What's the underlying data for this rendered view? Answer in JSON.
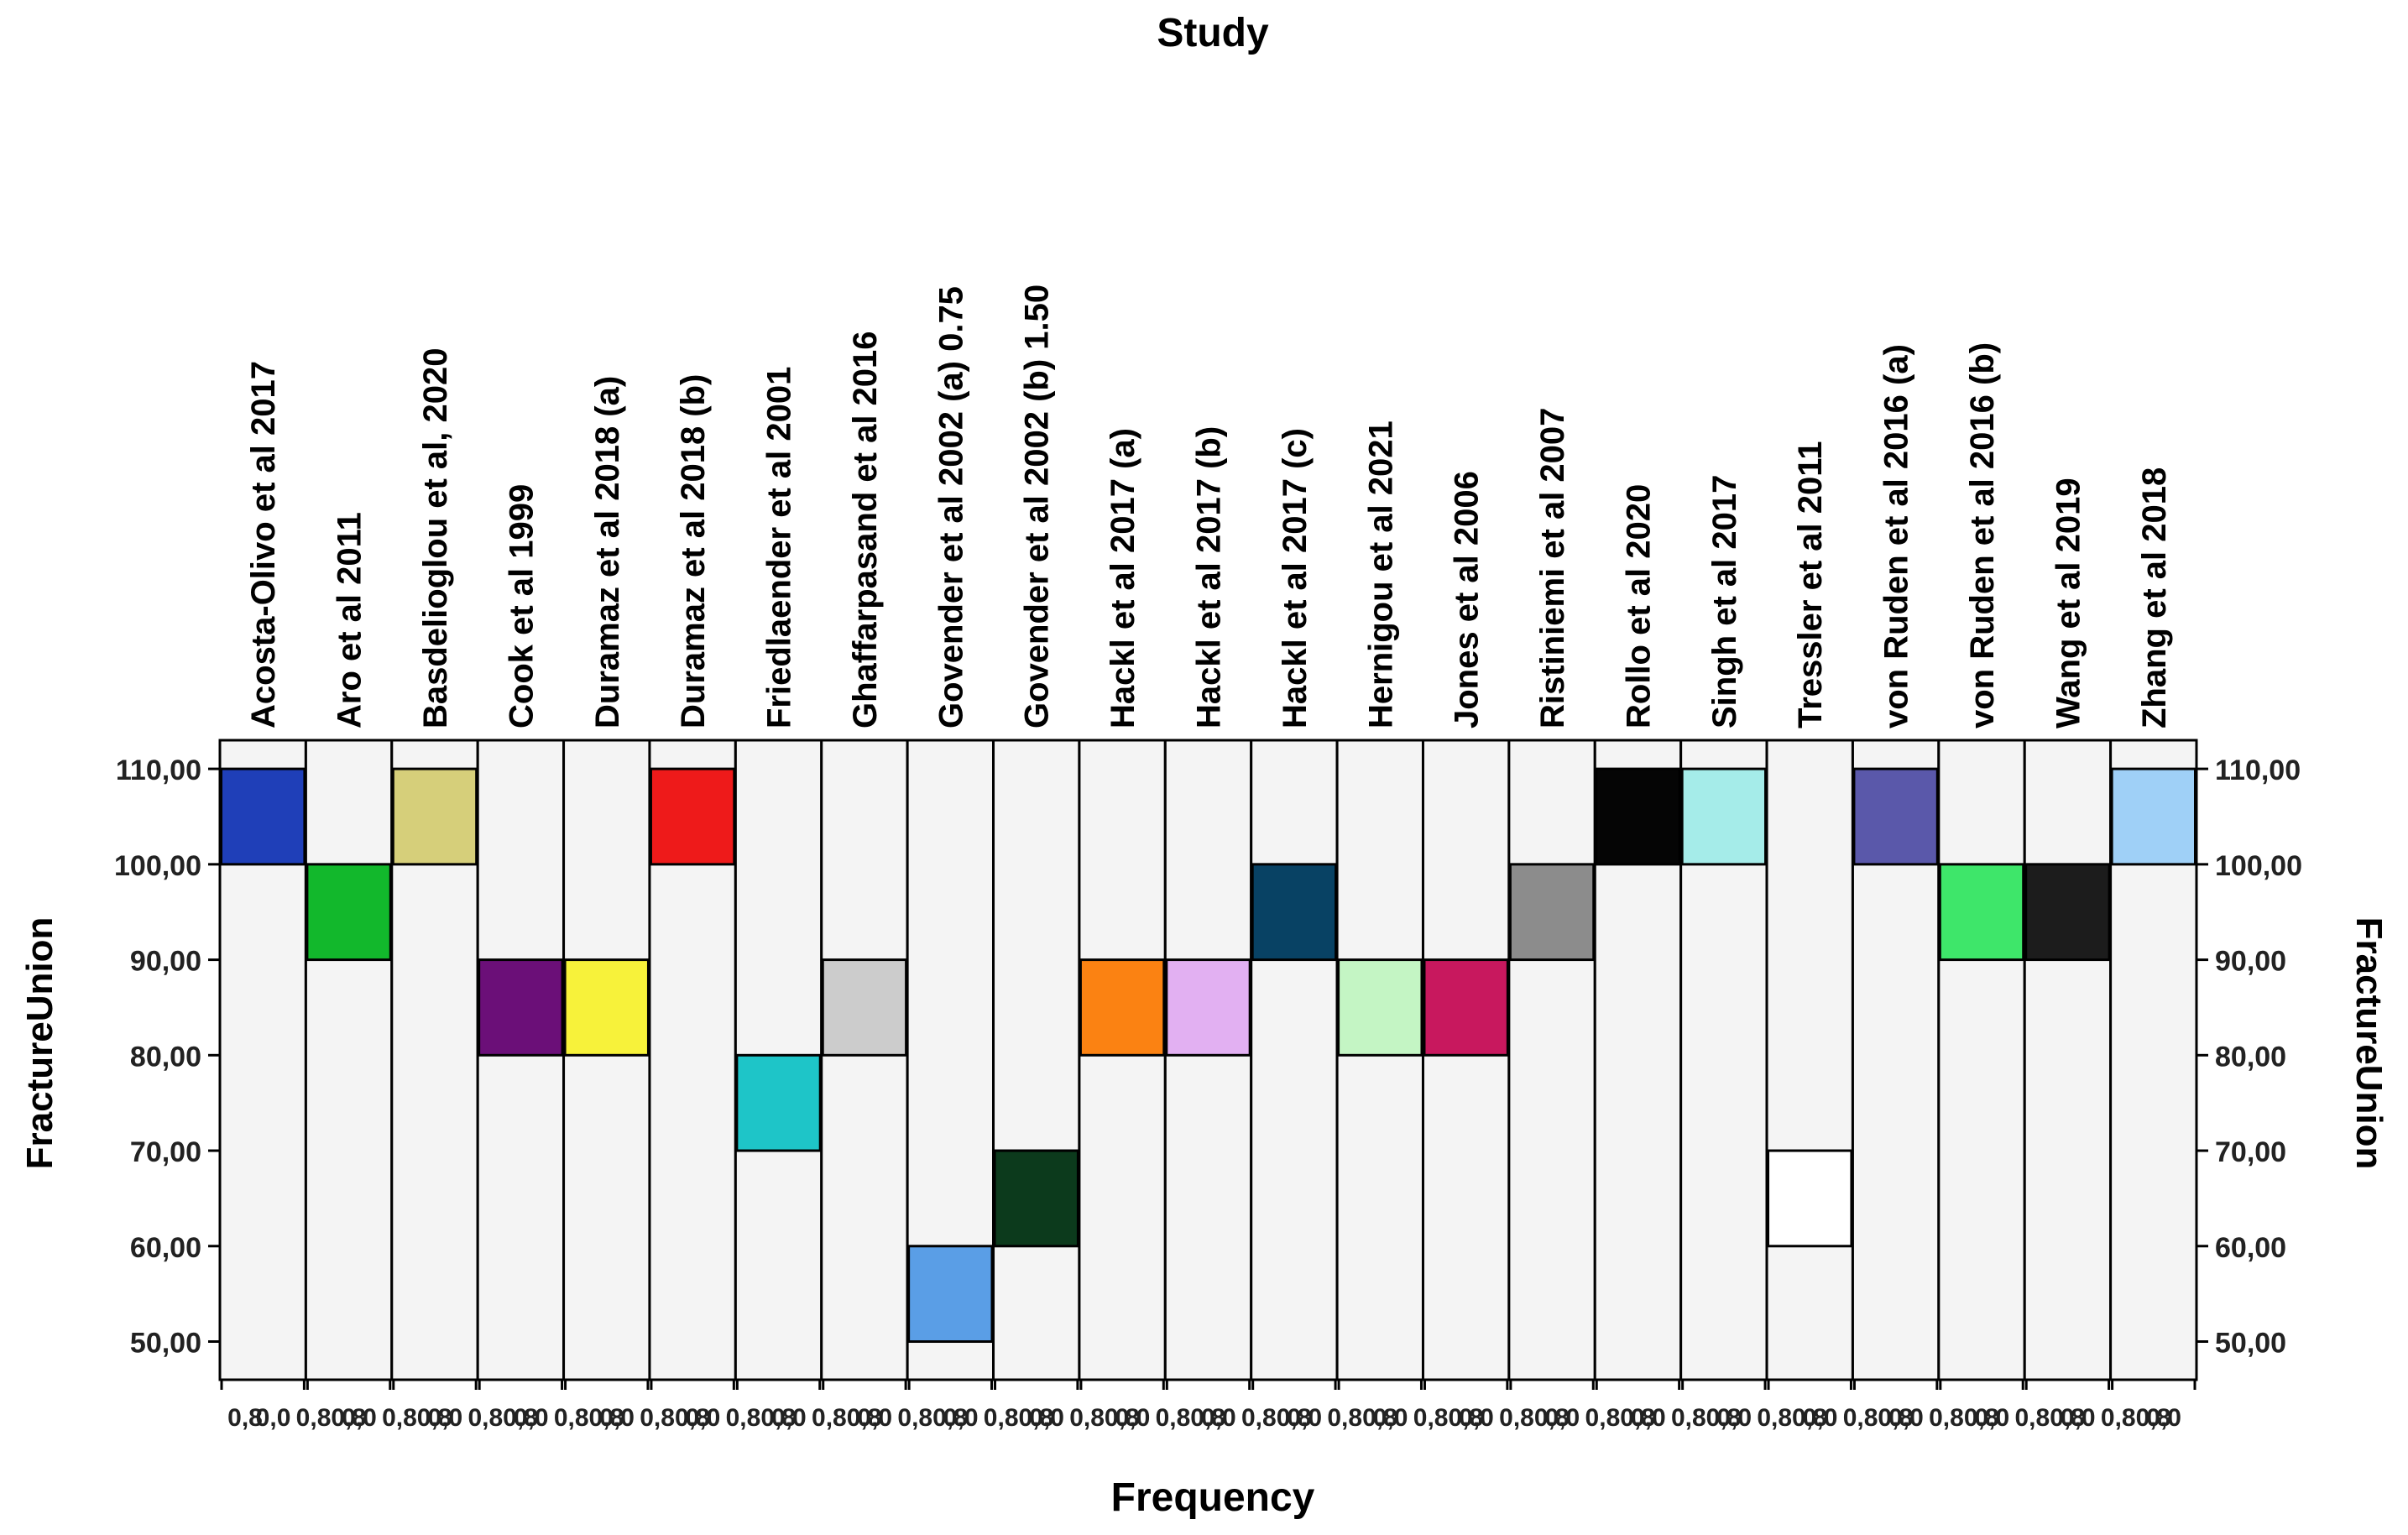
{
  "chart_data": {
    "type": "bar",
    "title": "Study",
    "xlabel": "Frequency",
    "ylabel": "FractureUnion",
    "ylabel_right": "FractureUnion",
    "ylim": [
      46,
      113
    ],
    "yticks": [
      "50,00",
      "60,00",
      "70,00",
      "80,00",
      "90,00",
      "100,00",
      "110,00"
    ],
    "ytick_values": [
      50,
      60,
      70,
      80,
      90,
      100,
      110
    ],
    "freq_tick_labels": [
      "0,8",
      "0,0",
      "0,80,8",
      "0,0",
      "0,80,8",
      "0,0",
      "0,80,8",
      "0,0",
      "0,80,8",
      "0,0",
      "0,80,8",
      "0,0",
      "0,80,8",
      "0,0",
      "0,80,8",
      "0,0",
      "0,80,8",
      "0,0",
      "0,80,8",
      "0,0",
      "0,80,8",
      "0,0",
      "0,80,8",
      "0,0",
      "0,80,8",
      "0,0",
      "0,80,8",
      "0,0",
      "0,80,8",
      "0,0",
      "0,80,8",
      "0,0",
      "0,80,8",
      "0,0",
      "0,80,8",
      "0,0",
      "0,80,8",
      "0,0",
      "0,80,8",
      "0,0",
      "0,80,8",
      "0,0",
      "0,80,8",
      "0,0",
      "0,80,8",
      "0,0",
      "0,80,8",
      "0,0"
    ],
    "freq_range": [
      0.8,
      0.0
    ],
    "bins": [
      {
        "study": "Acosta-Olivo et al  2017",
        "y0": 100,
        "y1": 110,
        "frequency": 0.8,
        "color": "#1f3fb8"
      },
      {
        "study": "Aro et al 2011",
        "y0": 90,
        "y1": 100,
        "frequency": 0.8,
        "color": "#12b82c"
      },
      {
        "study": "Basdelioglou et al, 2020",
        "y0": 100,
        "y1": 110,
        "frequency": 0.8,
        "color": "#d6cf7a"
      },
      {
        "study": "Cook et al 1999",
        "y0": 80,
        "y1": 90,
        "frequency": 0.8,
        "color": "#6b0f78"
      },
      {
        "study": "Duramaz et al 2018 (a)",
        "y0": 80,
        "y1": 90,
        "frequency": 0.8,
        "color": "#f7f23a"
      },
      {
        "study": "Duramaz et al 2018 (b)",
        "y0": 100,
        "y1": 110,
        "frequency": 0.8,
        "color": "#ee1a1a"
      },
      {
        "study": "Friedlaender et al 2001",
        "y0": 70,
        "y1": 80,
        "frequency": 0.8,
        "color": "#1ec5c8"
      },
      {
        "study": "Ghaffarpasand et al 2016",
        "y0": 80,
        "y1": 90,
        "frequency": 0.8,
        "color": "#cccccc"
      },
      {
        "study": "Govender et al 2002  (a) 0.75",
        "y0": 50,
        "y1": 60,
        "frequency": 0.8,
        "color": "#5a9ee6"
      },
      {
        "study": "Govender et al 2002  (b) 1.50",
        "y0": 60,
        "y1": 70,
        "frequency": 0.8,
        "color": "#0c3a1c"
      },
      {
        "study": "Hackl et al 2017 (a)",
        "y0": 80,
        "y1": 90,
        "frequency": 0.8,
        "color": "#fb8212"
      },
      {
        "study": "Hackl et al 2017 (b)",
        "y0": 80,
        "y1": 90,
        "frequency": 0.8,
        "color": "#e2b0f2"
      },
      {
        "study": "Hackl et al 2017 (c)",
        "y0": 90,
        "y1": 100,
        "frequency": 0.8,
        "color": "#084264"
      },
      {
        "study": "Hernigou et al 2021",
        "y0": 80,
        "y1": 90,
        "frequency": 0.8,
        "color": "#c4f5c4"
      },
      {
        "study": "Jones et al 2006",
        "y0": 80,
        "y1": 90,
        "frequency": 0.8,
        "color": "#c8185e"
      },
      {
        "study": "Ristiniemi et al 2007",
        "y0": 90,
        "y1": 100,
        "frequency": 0.8,
        "color": "#8c8c8c"
      },
      {
        "study": "Rollo et al 2020",
        "y0": 100,
        "y1": 110,
        "frequency": 0.8,
        "color": "#050505"
      },
      {
        "study": "Singh et al 2017",
        "y0": 100,
        "y1": 110,
        "frequency": 0.8,
        "color": "#a5ece9"
      },
      {
        "study": "Tressler et al 2011",
        "y0": 60,
        "y1": 70,
        "frequency": 0.8,
        "color": "#ffffff"
      },
      {
        "study": "von Ruden et al 2016 (a)",
        "y0": 100,
        "y1": 110,
        "frequency": 0.8,
        "color": "#5a58aa"
      },
      {
        "study": "von Ruden et al 2016 (b)",
        "y0": 90,
        "y1": 100,
        "frequency": 0.8,
        "color": "#3ee66a"
      },
      {
        "study": "Wang et al 2019",
        "y0": 90,
        "y1": 100,
        "frequency": 0.8,
        "color": "#1c1c1c"
      },
      {
        "study": "Zhang et al 2018",
        "y0": 100,
        "y1": 110,
        "frequency": 0.8,
        "color": "#9fd0f7"
      }
    ]
  }
}
